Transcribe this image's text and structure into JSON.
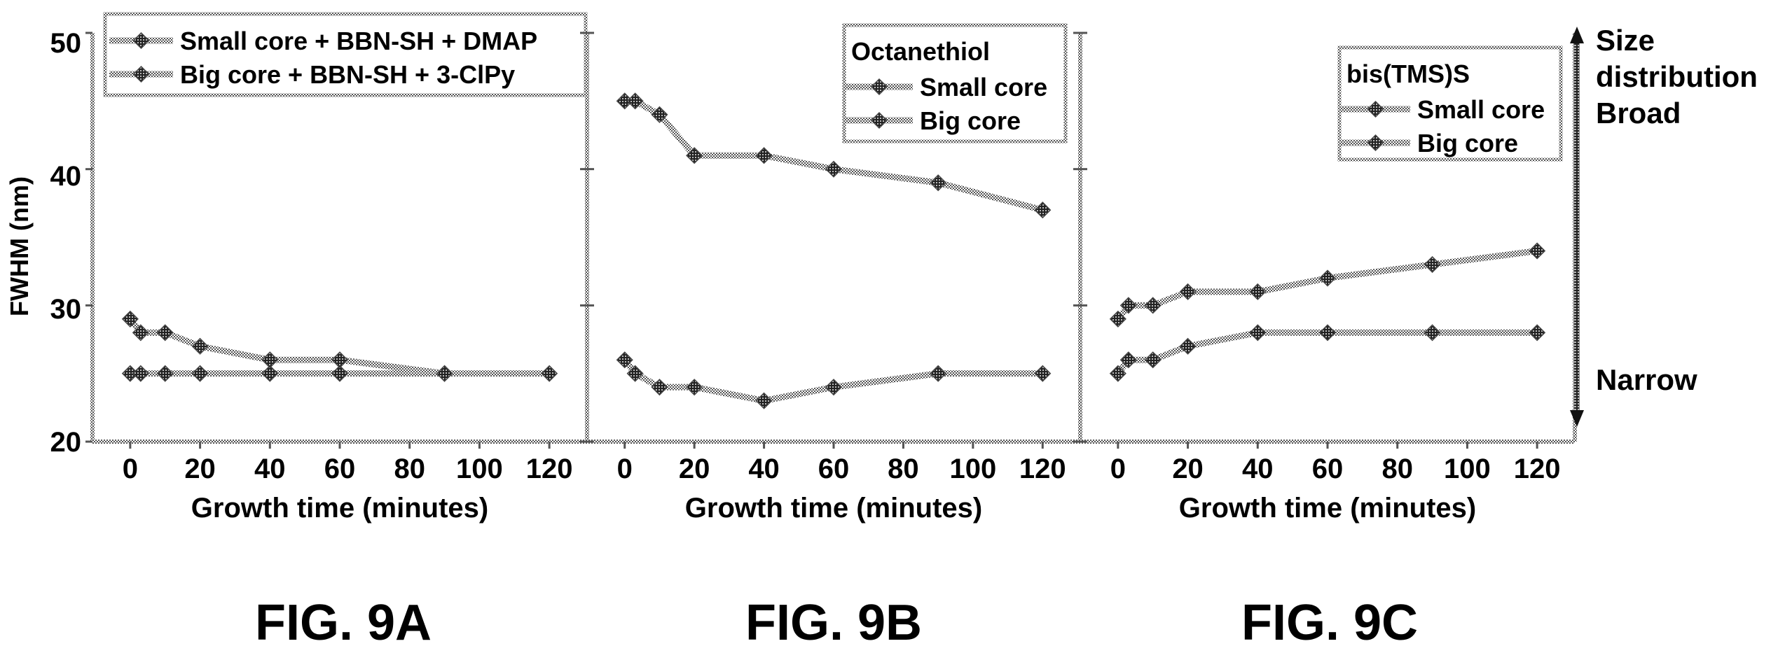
{
  "y_axis_label": "FWHM (nm)",
  "y_ticks": [
    "20",
    "30",
    "40",
    "50"
  ],
  "size_distribution": {
    "top_labels": [
      "Size",
      "distribution",
      "Broad"
    ],
    "bottom_label": "Narrow"
  },
  "chart_data": [
    {
      "type": "line",
      "caption": "FIG. 9A",
      "xlabel": "Growth time (minutes)",
      "ylabel": "FWHM (nm)",
      "xlim": [
        -10,
        130
      ],
      "ylim": [
        20,
        50
      ],
      "x_ticks": [
        0,
        20,
        40,
        60,
        80,
        100,
        120
      ],
      "legend_title": "",
      "series": [
        {
          "name": "Small core + BBN-SH + DMAP",
          "x": [
            0,
            3,
            10,
            20,
            40,
            60,
            90,
            120
          ],
          "y": [
            25,
            25,
            25,
            25,
            25,
            25,
            25,
            25
          ]
        },
        {
          "name": "Big core + BBN-SH + 3-ClPy",
          "x": [
            0,
            3,
            10,
            20,
            40,
            60,
            90
          ],
          "y": [
            29,
            28,
            28,
            27,
            26,
            26,
            25
          ]
        }
      ]
    },
    {
      "type": "line",
      "caption": "FIG. 9B",
      "xlabel": "Growth time (minutes)",
      "ylabel": "FWHM (nm)",
      "xlim": [
        -10,
        130
      ],
      "ylim": [
        20,
        50
      ],
      "x_ticks": [
        0,
        20,
        40,
        60,
        80,
        100,
        120
      ],
      "legend_title": "Octanethiol",
      "series": [
        {
          "name": "Small core",
          "x": [
            0,
            3,
            10,
            20,
            40,
            60,
            90,
            120
          ],
          "y": [
            26,
            25,
            24,
            24,
            23,
            24,
            25,
            25
          ]
        },
        {
          "name": "Big core",
          "x": [
            0,
            3,
            10,
            20,
            40,
            60,
            90,
            120
          ],
          "y": [
            45,
            45,
            44,
            41,
            41,
            40,
            39,
            37
          ]
        }
      ]
    },
    {
      "type": "line",
      "caption": "FIG. 9C",
      "xlabel": "Growth time (minutes)",
      "ylabel": "FWHM (nm)",
      "xlim": [
        -10,
        130
      ],
      "ylim": [
        20,
        50
      ],
      "x_ticks": [
        0,
        20,
        40,
        60,
        80,
        100,
        120
      ],
      "legend_title": "bis(TMS)S",
      "series": [
        {
          "name": "Small core",
          "x": [
            0,
            3,
            10,
            20,
            40,
            60,
            90,
            120
          ],
          "y": [
            25,
            26,
            26,
            27,
            28,
            28,
            28,
            28
          ]
        },
        {
          "name": "Big core",
          "x": [
            0,
            3,
            10,
            20,
            40,
            60,
            90,
            120
          ],
          "y": [
            29,
            30,
            30,
            31,
            31,
            32,
            33,
            34
          ]
        }
      ]
    }
  ]
}
